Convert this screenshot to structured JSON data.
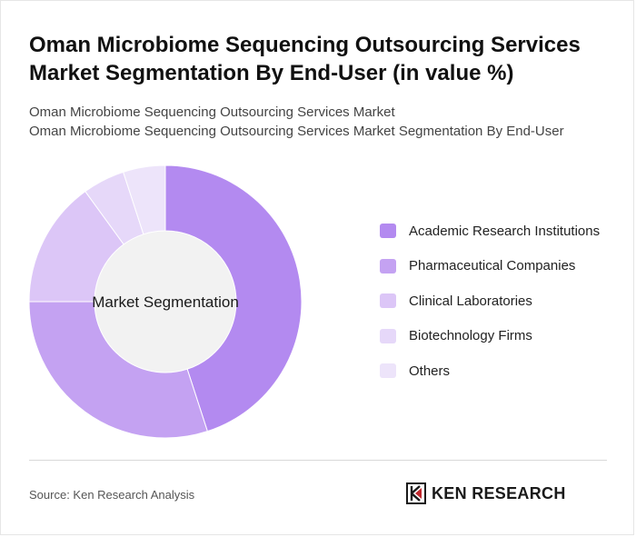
{
  "header": {
    "title": "Oman Microbiome Sequencing Outsourcing Services Market Segmentation By End-User (in value %)",
    "subtitle_line1": "Oman Microbiome Sequencing Outsourcing Services Market",
    "subtitle_line2": "Oman Microbiome Sequencing Outsourcing Services Market Segmentation By End-User"
  },
  "chart_data": {
    "type": "pie",
    "center_label": "Market Segmentation",
    "categories": [
      "Academic Research Institutions",
      "Pharmaceutical Companies",
      "Clinical Laboratories",
      "Biotechnology Firms",
      "Others"
    ],
    "values": [
      45,
      30,
      15,
      5,
      5
    ],
    "colors": [
      "#b38af0",
      "#c4a2f2",
      "#dcc6f7",
      "#e6d8f9",
      "#ede4fa"
    ],
    "hole_color": "#f2f2f2",
    "legend_position": "right"
  },
  "footer": {
    "source": "Source: Ken Research Analysis",
    "brand": "KEN RESEARCH"
  }
}
